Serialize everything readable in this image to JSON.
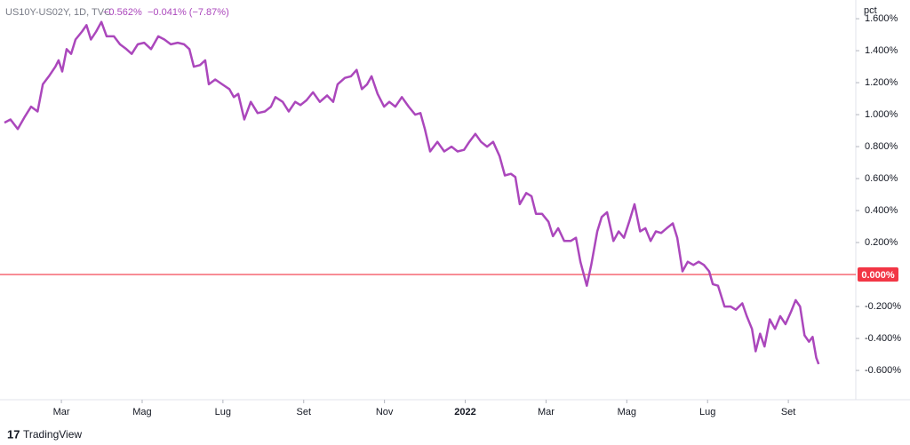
{
  "chart_data": {
    "type": "line",
    "symbol": "US10Y-US02Y, 1D, TVC",
    "last_value": "−0.562%",
    "change": "−0.041% (−7.87%)",
    "ylabel": "pct",
    "brand": "TradingView",
    "xlim": [
      0.48,
      21.67
    ],
    "ylim": [
      -0.783,
      1.717
    ],
    "xticks": [
      {
        "value": 2,
        "label": "Mar"
      },
      {
        "value": 4,
        "label": "Mag"
      },
      {
        "value": 6,
        "label": "Lug"
      },
      {
        "value": 8,
        "label": "Set"
      },
      {
        "value": 10,
        "label": "Nov"
      },
      {
        "value": 12,
        "label": "2022"
      },
      {
        "value": 14,
        "label": "Mar"
      },
      {
        "value": 16,
        "label": "Mag"
      },
      {
        "value": 18,
        "label": "Lug"
      },
      {
        "value": 20,
        "label": "Set"
      }
    ],
    "yticks": [
      {
        "value": 1.6,
        "label": "1.600%"
      },
      {
        "value": 1.4,
        "label": "1.400%"
      },
      {
        "value": 1.2,
        "label": "1.200%"
      },
      {
        "value": 1.0,
        "label": "1.000%"
      },
      {
        "value": 0.8,
        "label": "0.800%"
      },
      {
        "value": 0.6,
        "label": "0.600%"
      },
      {
        "value": 0.4,
        "label": "0.400%"
      },
      {
        "value": 0.2,
        "label": "0.200%"
      },
      {
        "value": -0.2,
        "label": "-0.200%"
      },
      {
        "value": -0.4,
        "label": "-0.400%"
      },
      {
        "value": -0.6,
        "label": "-0.600%"
      }
    ],
    "grid": false,
    "hline": {
      "value": 0,
      "label": "0.000%",
      "color": "#f23645"
    },
    "series": [
      {
        "name": "US10Y-US02Y",
        "color": "#ab47bc",
        "x": [
          0.59,
          0.74,
          0.92,
          1.1,
          1.25,
          1.41,
          1.54,
          1.69,
          1.85,
          1.93,
          2.02,
          2.13,
          2.24,
          2.35,
          2.51,
          2.62,
          2.73,
          2.86,
          2.99,
          3.12,
          3.3,
          3.45,
          3.61,
          3.74,
          3.89,
          4.05,
          4.22,
          4.4,
          4.55,
          4.71,
          4.88,
          5.04,
          5.17,
          5.28,
          5.43,
          5.56,
          5.65,
          5.81,
          5.98,
          6.16,
          6.27,
          6.38,
          6.53,
          6.69,
          6.86,
          7.04,
          7.19,
          7.3,
          7.48,
          7.63,
          7.79,
          7.92,
          8.07,
          8.23,
          8.4,
          8.58,
          8.73,
          8.84,
          9.02,
          9.17,
          9.31,
          9.44,
          9.57,
          9.68,
          9.83,
          9.99,
          10.12,
          10.27,
          10.43,
          10.6,
          10.76,
          10.89,
          11.0,
          11.13,
          11.31,
          11.48,
          11.66,
          11.81,
          11.97,
          12.1,
          12.25,
          12.39,
          12.54,
          12.69,
          12.85,
          12.98,
          13.13,
          13.24,
          13.35,
          13.51,
          13.64,
          13.75,
          13.9,
          14.06,
          14.17,
          14.3,
          14.45,
          14.61,
          14.74,
          14.85,
          15.01,
          15.12,
          15.27,
          15.38,
          15.51,
          15.67,
          15.8,
          15.93,
          16.06,
          16.19,
          16.33,
          16.46,
          16.59,
          16.72,
          16.85,
          16.99,
          17.14,
          17.25,
          17.38,
          17.51,
          17.65,
          17.78,
          17.91,
          18.04,
          18.13,
          18.26,
          18.42,
          18.57,
          18.7,
          18.86,
          18.97,
          19.1,
          19.19,
          19.3,
          19.41,
          19.54,
          19.67,
          19.8,
          19.93,
          20.07,
          20.18,
          20.29,
          20.4,
          20.51,
          20.6,
          20.69,
          20.75
        ],
        "values": [
          0.95,
          0.97,
          0.91,
          0.99,
          1.05,
          1.02,
          1.19,
          1.24,
          1.3,
          1.34,
          1.27,
          1.41,
          1.38,
          1.47,
          1.52,
          1.56,
          1.47,
          1.52,
          1.58,
          1.49,
          1.49,
          1.44,
          1.41,
          1.38,
          1.44,
          1.45,
          1.41,
          1.49,
          1.47,
          1.44,
          1.45,
          1.44,
          1.41,
          1.3,
          1.31,
          1.34,
          1.19,
          1.22,
          1.19,
          1.16,
          1.11,
          1.13,
          0.97,
          1.08,
          1.01,
          1.02,
          1.05,
          1.11,
          1.08,
          1.02,
          1.08,
          1.06,
          1.09,
          1.14,
          1.08,
          1.12,
          1.08,
          1.19,
          1.23,
          1.24,
          1.28,
          1.16,
          1.19,
          1.24,
          1.13,
          1.05,
          1.08,
          1.05,
          1.11,
          1.05,
          1.0,
          1.01,
          0.91,
          0.77,
          0.83,
          0.77,
          0.8,
          0.77,
          0.78,
          0.83,
          0.88,
          0.83,
          0.8,
          0.83,
          0.74,
          0.62,
          0.63,
          0.61,
          0.44,
          0.51,
          0.49,
          0.38,
          0.38,
          0.33,
          0.24,
          0.29,
          0.21,
          0.21,
          0.23,
          0.08,
          -0.07,
          0.06,
          0.27,
          0.36,
          0.39,
          0.21,
          0.27,
          0.23,
          0.33,
          0.44,
          0.27,
          0.29,
          0.21,
          0.27,
          0.26,
          0.29,
          0.32,
          0.23,
          0.02,
          0.08,
          0.06,
          0.08,
          0.06,
          0.02,
          -0.06,
          -0.07,
          -0.2,
          -0.2,
          -0.22,
          -0.18,
          -0.26,
          -0.34,
          -0.48,
          -0.37,
          -0.45,
          -0.28,
          -0.34,
          -0.26,
          -0.31,
          -0.23,
          -0.16,
          -0.2,
          -0.38,
          -0.42,
          -0.39,
          -0.52,
          -0.56
        ]
      }
    ]
  }
}
